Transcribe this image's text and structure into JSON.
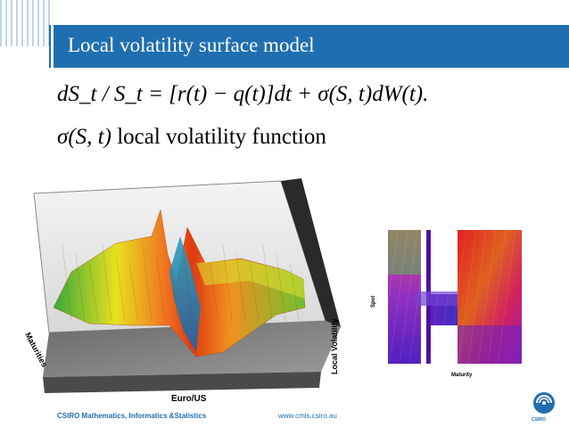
{
  "slide": {
    "title": "Local volatility surface model",
    "equation1": "dS_t / S_t = [r(t) − q(t)]dt + σ(S, t)dW(t).",
    "equation2_symbol": "σ(S, t)",
    "equation2_text": " local volatility function"
  },
  "surface_plot": {
    "x_label": "Euro/US",
    "y_label": "Maturities",
    "z_label": "Local Volatility"
  },
  "heatmap": {
    "x_label": "Maturity",
    "y_label": "Spot"
  },
  "footer": {
    "left": "CSIRO Mathematics, Informatics &Statistics",
    "url": "www.cmis.csiro.au"
  },
  "logo": {
    "text": "CSIRO"
  },
  "colors": {
    "accent": "#1f6fb0"
  }
}
